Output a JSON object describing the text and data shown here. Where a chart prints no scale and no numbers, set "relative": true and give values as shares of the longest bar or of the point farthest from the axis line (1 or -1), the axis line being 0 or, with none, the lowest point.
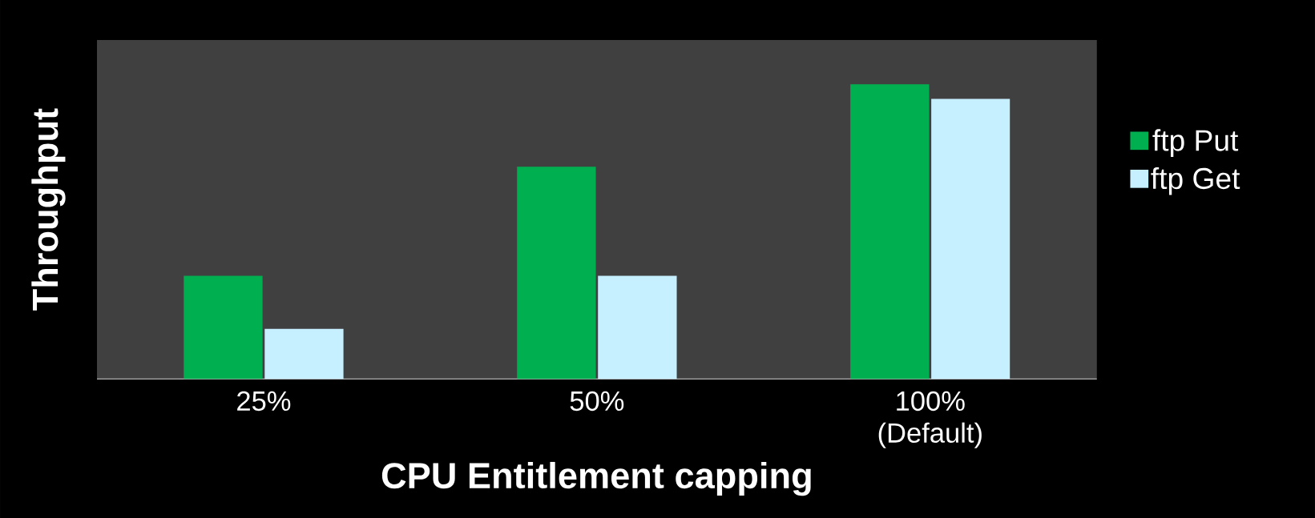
{
  "chart_data": {
    "type": "bar",
    "xlabel": "CPU Entitlement capping",
    "ylabel": "Throughput",
    "categories": [
      "25%",
      "50%",
      "100% (Default)"
    ],
    "series": [
      {
        "name": "ftp Put",
        "color": "#00b050",
        "values": [
          0.35,
          0.72,
          1
        ]
      },
      {
        "name": "ftp Get",
        "color": "#c6efff",
        "values": [
          0.17,
          0.35,
          0.95
        ]
      }
    ],
    "relative": true,
    "legend": "right"
  }
}
